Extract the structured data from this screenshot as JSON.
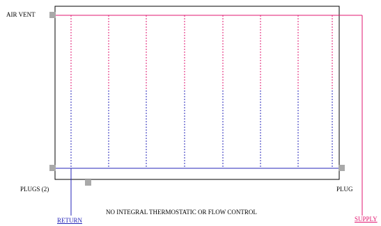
{
  "labels": {
    "air_vent": "AIR VENT",
    "plugs": "PLUGS (2)",
    "plug": "PLUG",
    "note": "NO INTEGRAL THERMOSTATIC OR FLOW CONTROL",
    "return": "RETURN",
    "supply": "SUPPLY"
  },
  "colors": {
    "frame": "#000000",
    "supply": "#e2166f",
    "return": "#2323b8",
    "fitting": "#a9a9a9"
  }
}
